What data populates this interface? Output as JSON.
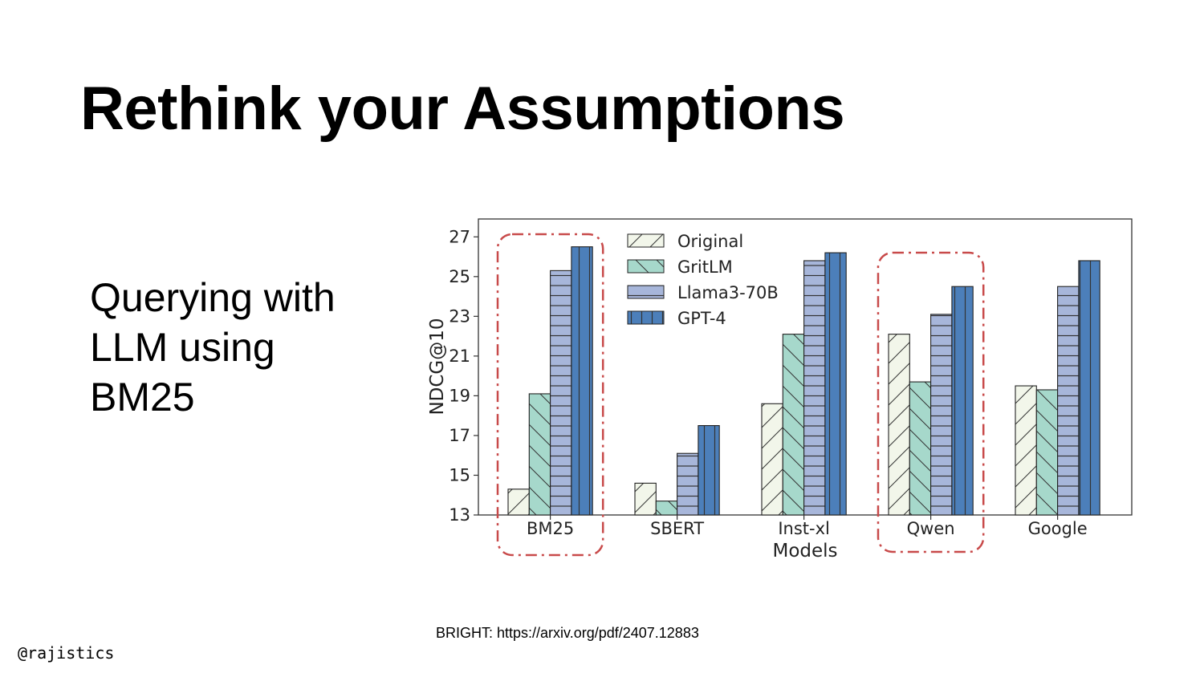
{
  "slide": {
    "title": "Rethink your Assumptions",
    "body_lines": [
      "Querying with",
      "LLM using",
      "BM25"
    ],
    "citation": "BRIGHT: https://arxiv.org/pdf/2407.12883",
    "handle": "@rajistics"
  },
  "chart_data": {
    "type": "bar",
    "categories": [
      "BM25",
      "SBERT",
      "Inst-xl",
      "Qwen",
      "Google"
    ],
    "series": [
      {
        "name": "Original",
        "values": [
          14.3,
          14.6,
          18.6,
          22.1,
          19.5
        ],
        "color": "#f2f6ea",
        "pattern": "diagonal"
      },
      {
        "name": "GritLM",
        "values": [
          19.1,
          13.7,
          22.1,
          19.7,
          19.3
        ],
        "color": "#a6d8cb",
        "pattern": "back-diagonal"
      },
      {
        "name": "Llama3-70B",
        "values": [
          25.3,
          16.1,
          25.8,
          23.1,
          24.5
        ],
        "color": "#a7b6da",
        "pattern": "horizontal"
      },
      {
        "name": "GPT-4",
        "values": [
          26.5,
          17.5,
          26.2,
          24.5,
          25.8
        ],
        "color": "#4c7fba",
        "pattern": "vertical"
      }
    ],
    "xlabel": "Models",
    "ylabel": "NDCG@10",
    "ylim": [
      13,
      27.9
    ],
    "yticks": [
      13,
      15,
      17,
      19,
      21,
      23,
      25,
      27
    ],
    "legend_position": "top-left",
    "grid": false,
    "highlighted_categories": [
      "BM25",
      "Qwen"
    ],
    "highlight_color": "#c84a4a"
  }
}
